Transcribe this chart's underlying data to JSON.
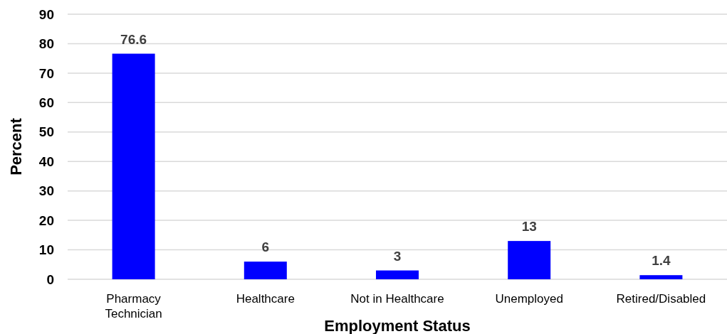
{
  "chart_data": {
    "type": "bar",
    "xlabel": "Employment Status",
    "ylabel": "Percent",
    "categories": [
      "Pharmacy Technician",
      "Healthcare",
      "Not in Healthcare",
      "Unemployed",
      "Retired/Disabled"
    ],
    "values": [
      76.6,
      6,
      3,
      13,
      1.4
    ],
    "color": "#0000ff",
    "ylim": [
      0,
      90
    ],
    "yticks": [
      0,
      10,
      20,
      30,
      40,
      50,
      60,
      70,
      80,
      90
    ],
    "grid": "y",
    "data_labels": true
  }
}
